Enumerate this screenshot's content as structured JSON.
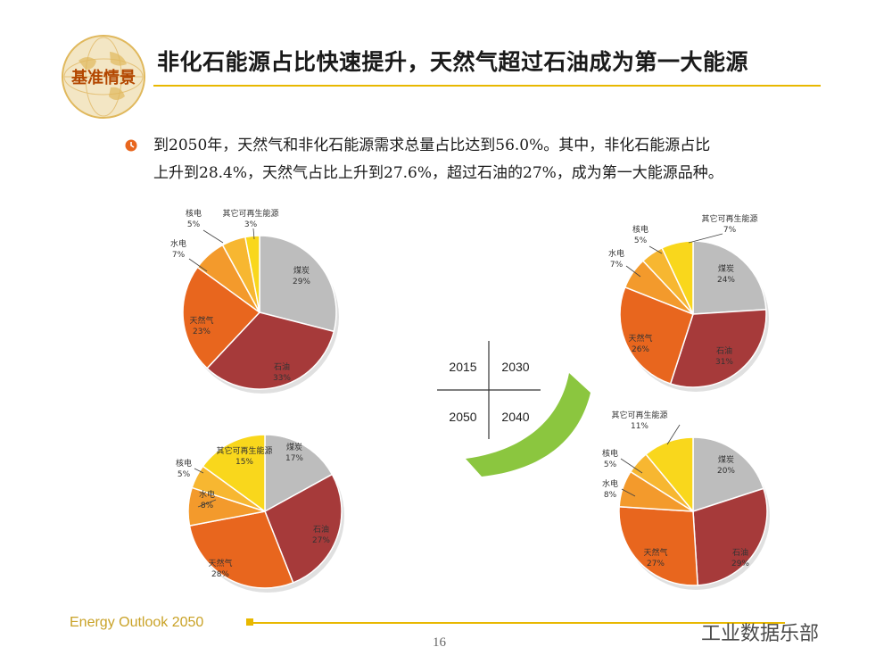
{
  "logo": {
    "text": "基准情景"
  },
  "header": {
    "title": "非化石能源占比快速提升，天然气超过石油成为第一大能源"
  },
  "body": {
    "line1": "到2050年，天然气和非化石能源需求总量占比达到56.0%。其中，非化石能源占比",
    "line2": "上升到28.4%，天然气占比上升到27.6%，超过石油的27%，成为第一大能源品种。"
  },
  "quadrant": {
    "tl": "2015",
    "tr": "2030",
    "bl": "2050",
    "br": "2040"
  },
  "footer": {
    "text": "Energy Outlook 2050",
    "page": "16",
    "watermark": "工业数据乐部"
  },
  "colors": {
    "coal": "#bdbdbd",
    "oil": "#a63a3a",
    "gas": "#e8661e",
    "hydro": "#f39a2c",
    "nuclear": "#f7b731",
    "renew": "#f9d71c",
    "accent": "#e8b800",
    "arrow": "#7ec02a"
  },
  "chart_data": [
    {
      "type": "pie",
      "year": "2015",
      "slices": [
        {
          "label": "煤炭",
          "value": 29
        },
        {
          "label": "石油",
          "value": 33
        },
        {
          "label": "天然气",
          "value": 23
        },
        {
          "label": "水电",
          "value": 7
        },
        {
          "label": "核电",
          "value": 5
        },
        {
          "label": "其它可再生能源",
          "value": 3
        }
      ]
    },
    {
      "type": "pie",
      "year": "2030",
      "slices": [
        {
          "label": "煤炭",
          "value": 24
        },
        {
          "label": "石油",
          "value": 31
        },
        {
          "label": "天然气",
          "value": 26
        },
        {
          "label": "水电",
          "value": 7
        },
        {
          "label": "核电",
          "value": 5
        },
        {
          "label": "其它可再生能源",
          "value": 7
        }
      ]
    },
    {
      "type": "pie",
      "year": "2050",
      "slices": [
        {
          "label": "煤炭",
          "value": 17
        },
        {
          "label": "石油",
          "value": 27
        },
        {
          "label": "天然气",
          "value": 28
        },
        {
          "label": "水电",
          "value": 8
        },
        {
          "label": "核电",
          "value": 5
        },
        {
          "label": "其它可再生能源",
          "value": 15
        }
      ]
    },
    {
      "type": "pie",
      "year": "2040",
      "slices": [
        {
          "label": "煤炭",
          "value": 20
        },
        {
          "label": "石油",
          "value": 29
        },
        {
          "label": "天然气",
          "value": 27
        },
        {
          "label": "水电",
          "value": 8
        },
        {
          "label": "核电",
          "value": 5
        },
        {
          "label": "其它可再生能源",
          "value": 11
        }
      ]
    }
  ]
}
